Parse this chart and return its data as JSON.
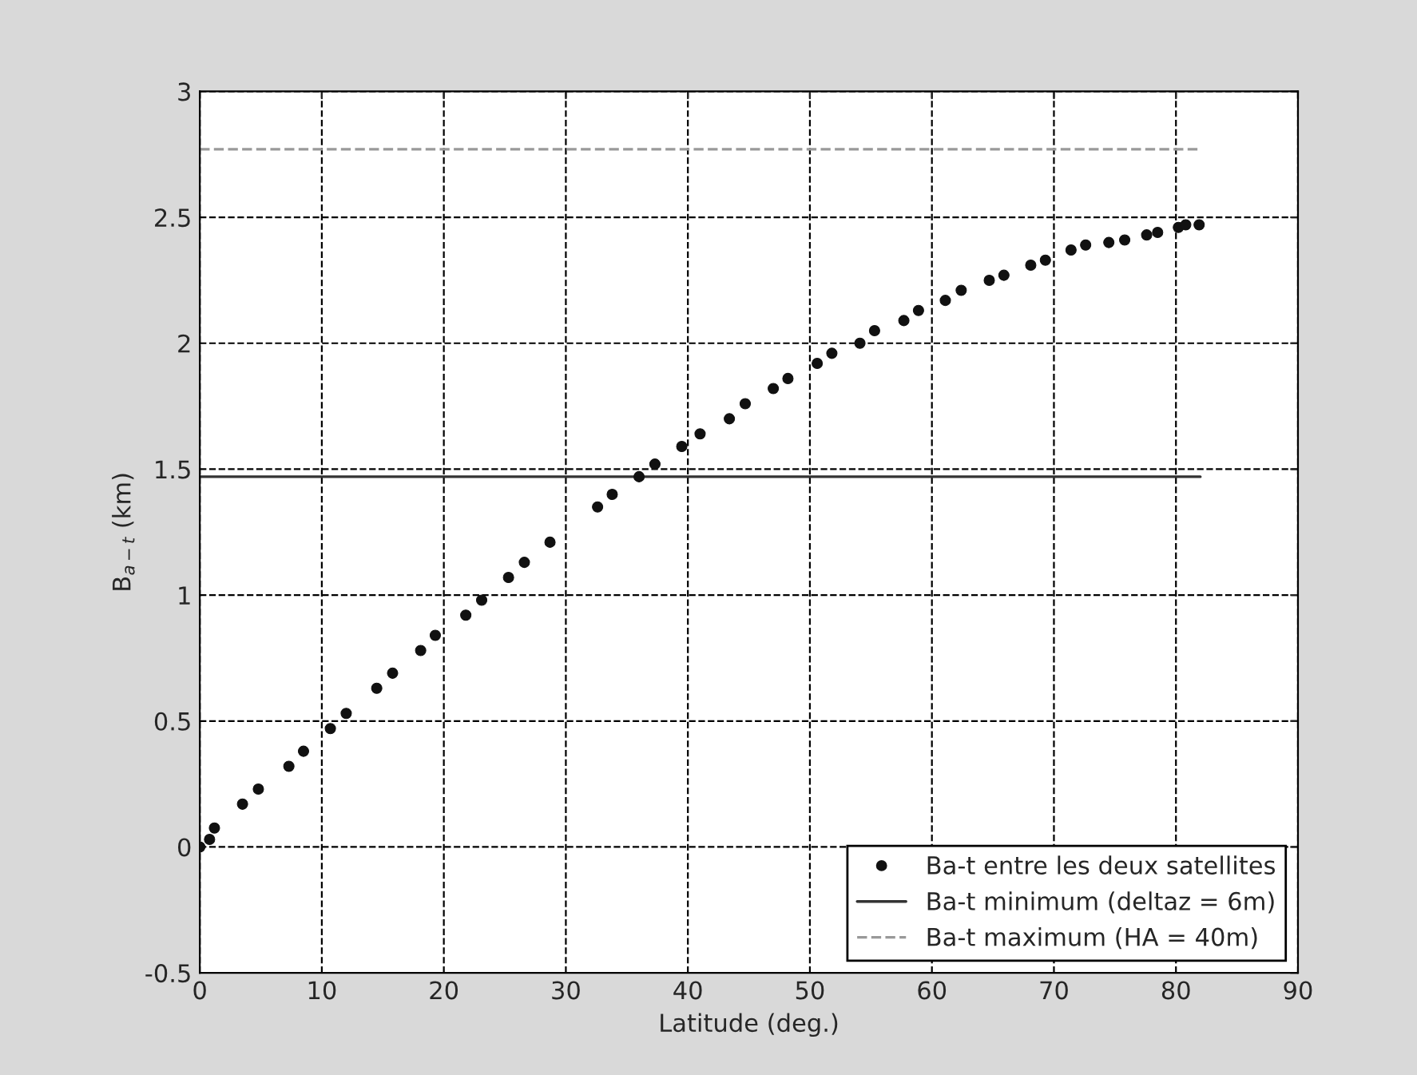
{
  "chart_data": {
    "type": "scatter",
    "xlabel": "Latitude (deg.)",
    "ylabel": "B$_{a−t}$ (km)",
    "xlim": [
      0,
      90
    ],
    "xticks": [
      0,
      10,
      20,
      30,
      40,
      50,
      60,
      70,
      80,
      90
    ],
    "ylim": [
      -0.5,
      3
    ],
    "yticks": [
      -0.5,
      0,
      0.5,
      1,
      1.5,
      2,
      2.5,
      3
    ],
    "grid": true,
    "legend": "bottom right",
    "series": [
      {
        "name": "Ba-t entre les deux satellites",
        "marker": "circle",
        "color": "#111111",
        "x": [
          0,
          0.8,
          1.2,
          3.5,
          4.8,
          7.3,
          8.5,
          10.7,
          12.0,
          14.5,
          15.8,
          18.1,
          19.3,
          21.8,
          23.1,
          25.3,
          26.6,
          28.7,
          32.6,
          33.8,
          36.0,
          37.3,
          39.5,
          41.0,
          43.4,
          44.7,
          47.0,
          48.2,
          50.6,
          51.8,
          54.1,
          55.3,
          57.7,
          58.9,
          61.1,
          62.4,
          64.7,
          65.9,
          68.1,
          69.3,
          71.4,
          72.6,
          74.5,
          75.8,
          77.6,
          78.5,
          80.2,
          80.8,
          81.9
        ],
        "values": [
          0,
          0.03,
          0.075,
          0.17,
          0.23,
          0.32,
          0.38,
          0.47,
          0.53,
          0.63,
          0.69,
          0.78,
          0.84,
          0.92,
          0.98,
          1.07,
          1.13,
          1.21,
          1.35,
          1.4,
          1.47,
          1.52,
          1.59,
          1.64,
          1.7,
          1.76,
          1.82,
          1.86,
          1.92,
          1.96,
          2.0,
          2.05,
          2.09,
          2.13,
          2.17,
          2.21,
          2.25,
          2.27,
          2.31,
          2.33,
          2.37,
          2.39,
          2.4,
          2.41,
          2.43,
          2.44,
          2.46,
          2.47,
          2.47
        ]
      },
      {
        "name": "Ba-t minimum (deltaz = 6m)",
        "type": "line",
        "line_style": "solid",
        "color": "#333333",
        "x": [
          0,
          82
        ],
        "values": [
          1.47,
          1.47
        ]
      },
      {
        "name": "Ba-t maximum (HA = 40m)",
        "type": "line",
        "line_style": "dashed",
        "color": "#999999",
        "x": [
          0,
          82
        ],
        "values": [
          2.77,
          2.77
        ]
      }
    ]
  }
}
